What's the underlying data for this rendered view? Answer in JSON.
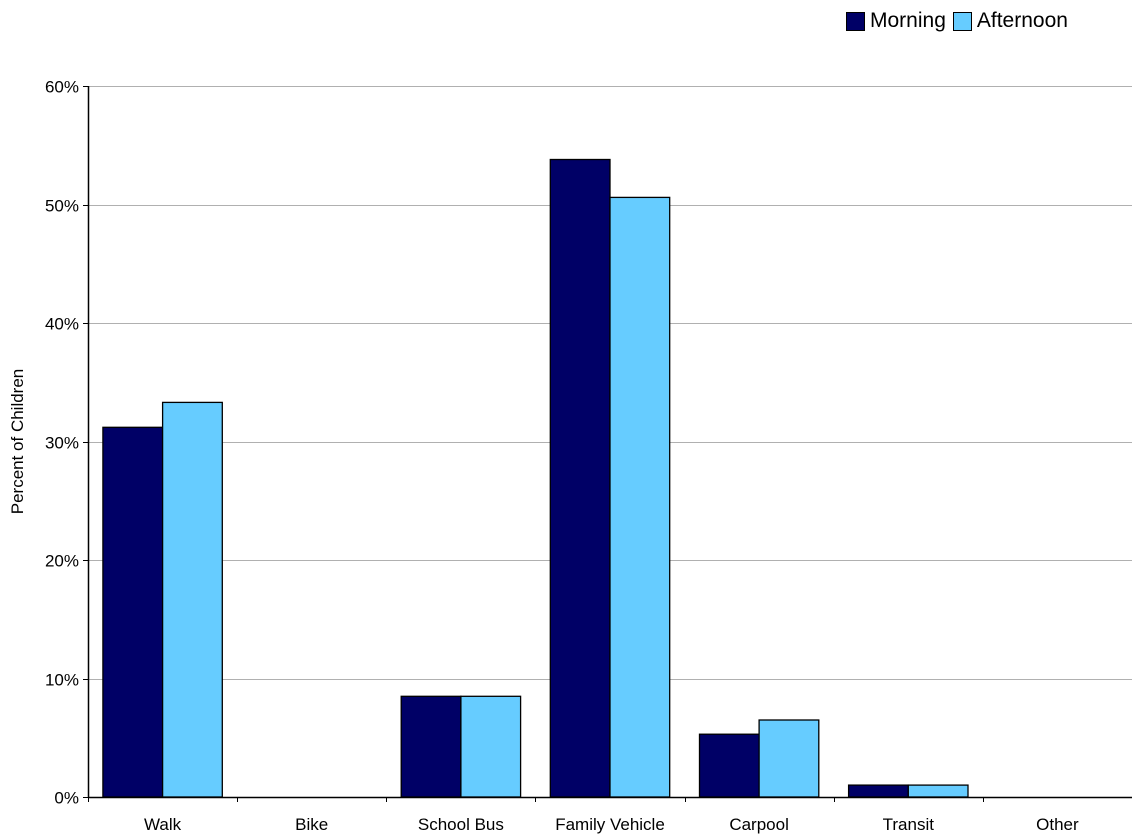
{
  "chart_data": {
    "type": "bar",
    "title": "",
    "xlabel": "",
    "ylabel": "Percent of Children",
    "categories": [
      "Walk",
      "Bike",
      "School Bus",
      "Family Vehicle",
      "Carpool",
      "Transit",
      "Other"
    ],
    "series": [
      {
        "name": "Morning",
        "color": "#000066",
        "values": [
          31.2,
          0,
          8.5,
          53.8,
          5.3,
          1.0,
          0
        ]
      },
      {
        "name": "Afternoon",
        "color": "#66ccff",
        "values": [
          33.3,
          0,
          8.5,
          50.6,
          6.5,
          1.0,
          0
        ]
      }
    ],
    "ylim": [
      0,
      60
    ],
    "yticks": [
      0,
      10,
      20,
      30,
      40,
      50,
      60
    ],
    "ytick_labels": [
      "0%",
      "10%",
      "20%",
      "30%",
      "40%",
      "50%",
      "60%"
    ],
    "grid": true,
    "legend_position": "top-right"
  }
}
